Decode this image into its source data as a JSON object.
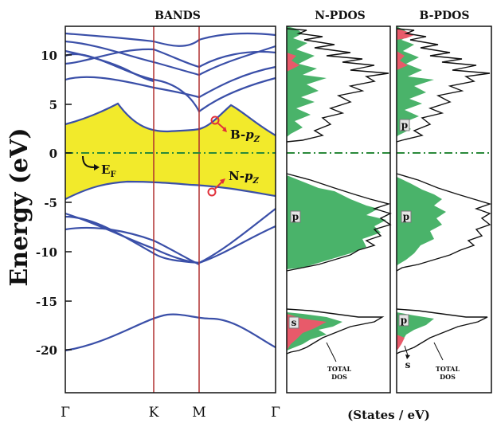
{
  "titles": {
    "bands": "BANDS",
    "npdos": "N-PDOS",
    "bpdos": "B-PDOS"
  },
  "axes": {
    "ylabel": "Energy (eV)",
    "xlabel_dos": "(States / eV)",
    "ylim": [
      -25,
      13
    ],
    "yticks": [
      10,
      5,
      0,
      -5,
      -10,
      -15,
      -20
    ],
    "kpoints": [
      "Γ",
      "K",
      "M",
      "Γ"
    ]
  },
  "annotations": {
    "ef": "E",
    "ef_sub": "F",
    "bpz_prefix": "B-",
    "npz_prefix": "N-",
    "pz": "p",
    "pz_sub": "Z",
    "npdos_p": "p",
    "npdos_s": "s",
    "bpdos_p_upper": "p",
    "bpdos_p_mid": "p",
    "bpdos_p_low": "p",
    "bpdos_s": "s",
    "total1": "TOTAL",
    "total2": "DOS"
  },
  "colors": {
    "band": "#3a4fa8",
    "gap": "#f2ea2b",
    "kline": "#b03030",
    "fermi": "#2a8a3a",
    "p": "#4ab36a",
    "s": "#e85a6a"
  },
  "chart_data": {
    "type": "line",
    "title": "BANDS",
    "ylabel": "Energy (eV)",
    "ylim": [
      -25,
      13
    ],
    "x_kpath": [
      "Γ",
      "K",
      "M",
      "Γ"
    ],
    "fermi_level": 0,
    "band_gap_region": {
      "lower_band": "N-pz",
      "upper_band": "B-pz",
      "vbm": -3.5,
      "cbm": 2.2
    },
    "series": [
      {
        "x": [
          0,
          0.2,
          0.4,
          0.6,
          0.8,
          1.0
        ],
        "values": [
          -20.0,
          -18.8,
          -17.0,
          -16.4,
          -16.8,
          -16.8
        ]
      },
      {
        "x": [
          0,
          0.2,
          0.4,
          0.6,
          0.8,
          1.0
        ],
        "values": [
          -4.0,
          -6.5,
          -9.0,
          -9.8,
          -10.5,
          -11.0
        ]
      },
      {
        "x": [
          0,
          0.2,
          0.4,
          0.6,
          0.8,
          1.0
        ],
        "values": [
          -7.6,
          -7.0,
          -8.0,
          -9.5,
          -10.2,
          -11.0
        ]
      },
      {
        "x": [
          0,
          0.2,
          0.4,
          0.6,
          0.8,
          1.0
        ],
        "values": [
          -4.0,
          -5.0,
          -4.5,
          -4.0,
          -3.9,
          -3.5
        ]
      },
      {
        "x": [
          0,
          0.2,
          0.4,
          0.6,
          0.8,
          1.0
        ],
        "values": [
          2.2,
          4.0,
          5.2,
          2.4,
          2.2,
          2.2
        ]
      },
      {
        "x": [
          0,
          0.2,
          0.4,
          0.6,
          0.8,
          1.0
        ],
        "values": [
          9.2,
          8.0,
          5.5,
          4.5,
          4.0,
          4.5
        ]
      },
      {
        "x": [
          0,
          0.2,
          0.4,
          0.6,
          0.8,
          1.0
        ],
        "values": [
          10.0,
          9.5,
          7.5,
          6.0,
          5.5,
          5.0
        ]
      },
      {
        "x": [
          0,
          0.2,
          0.4,
          0.6,
          0.8,
          1.0
        ],
        "values": [
          11.5,
          11.0,
          10.5,
          10.0,
          9.0,
          8.5
        ]
      },
      {
        "x": [
          0,
          0.2,
          0.4,
          0.6,
          0.8,
          1.0
        ],
        "values": [
          12.8,
          12.0,
          11.5,
          11.0,
          10.2,
          9.0
        ]
      }
    ]
  }
}
